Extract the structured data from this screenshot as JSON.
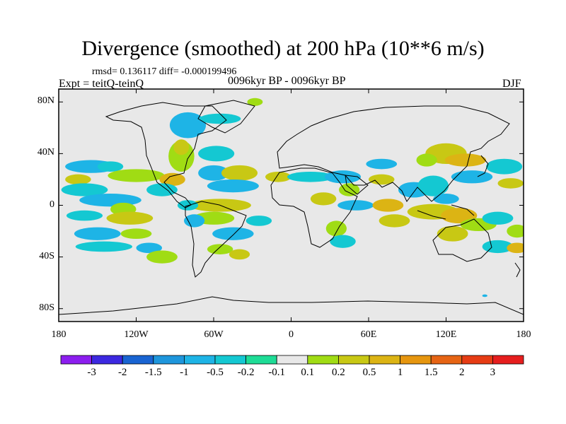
{
  "title": "Divergence (smoothed) at 200 hPa (10**6 m/s)",
  "stats": "rmsd= 0.136117 diff= -0.000199496",
  "experiment": "Expt = teitQ-teinQ",
  "period": "0096kyr BP - 0096kyr BP",
  "season": "DJF",
  "axes": {
    "y_labels": [
      {
        "label": "80N",
        "lat": 80
      },
      {
        "label": "40N",
        "lat": 40
      },
      {
        "label": "0",
        "lat": 0
      },
      {
        "label": "40S",
        "lat": -40
      },
      {
        "label": "80S",
        "lat": -80
      }
    ],
    "x_labels": [
      {
        "label": "180",
        "lon": -180
      },
      {
        "label": "120W",
        "lon": -120
      },
      {
        "label": "60W",
        "lon": -60
      },
      {
        "label": "0",
        "lon": 0
      },
      {
        "label": "60E",
        "lon": 60
      },
      {
        "label": "120E",
        "lon": 120
      },
      {
        "label": "180",
        "lon": 180
      }
    ],
    "lat_range": [
      -90,
      90
    ],
    "lon_range": [
      -180,
      180
    ]
  },
  "colorbar": {
    "colors": [
      "#8c1eef",
      "#3c28e0",
      "#1964d2",
      "#1e96dc",
      "#1eb4e6",
      "#14c8d2",
      "#1edc96",
      "#e8e8e8",
      "#a0dc14",
      "#c8c814",
      "#dcb414",
      "#e6960f",
      "#e66414",
      "#e63c14",
      "#e61e1e"
    ],
    "labels": [
      "-3",
      "-2",
      "-1.5",
      "-1",
      "-0.5",
      "-0.2",
      "-0.1",
      "0.1",
      "0.2",
      "0.5",
      "1",
      "1.5",
      "2",
      "3"
    ]
  },
  "field_blobs": [
    {
      "lon": -155,
      "lat": 30,
      "rx": 20,
      "ry": 5,
      "color": "#1eb4e6"
    },
    {
      "lon": -140,
      "lat": 30,
      "rx": 10,
      "ry": 4,
      "color": "#14c8d2"
    },
    {
      "lon": -120,
      "lat": 23,
      "rx": 22,
      "ry": 5,
      "color": "#a0dc14"
    },
    {
      "lon": -165,
      "lat": 20,
      "rx": 10,
      "ry": 4,
      "color": "#c8c814"
    },
    {
      "lon": -160,
      "lat": 12,
      "rx": 18,
      "ry": 5,
      "color": "#14c8d2"
    },
    {
      "lon": -140,
      "lat": 4,
      "rx": 24,
      "ry": 5,
      "color": "#1eb4e6"
    },
    {
      "lon": -130,
      "lat": -3,
      "rx": 10,
      "ry": 5,
      "color": "#a0dc14"
    },
    {
      "lon": -125,
      "lat": -10,
      "rx": 18,
      "ry": 5,
      "color": "#c8c814"
    },
    {
      "lon": -160,
      "lat": -8,
      "rx": 14,
      "ry": 4,
      "color": "#14c8d2"
    },
    {
      "lon": -150,
      "lat": -22,
      "rx": 18,
      "ry": 5,
      "color": "#1eb4e6"
    },
    {
      "lon": -120,
      "lat": -22,
      "rx": 12,
      "ry": 4,
      "color": "#a0dc14"
    },
    {
      "lon": -145,
      "lat": -32,
      "rx": 22,
      "ry": 4,
      "color": "#14c8d2"
    },
    {
      "lon": -110,
      "lat": -33,
      "rx": 10,
      "ry": 4,
      "color": "#1eb4e6"
    },
    {
      "lon": -100,
      "lat": -40,
      "rx": 12,
      "ry": 5,
      "color": "#a0dc14"
    },
    {
      "lon": -80,
      "lat": 62,
      "rx": 14,
      "ry": 10,
      "color": "#1eb4e6"
    },
    {
      "lon": -85,
      "lat": 38,
      "rx": 10,
      "ry": 12,
      "color": "#a0dc14"
    },
    {
      "lon": -85,
      "lat": 45,
      "rx": 6,
      "ry": 6,
      "color": "#c8c814"
    },
    {
      "lon": -92,
      "lat": 20,
      "rx": 10,
      "ry": 5,
      "color": "#dcb414"
    },
    {
      "lon": -100,
      "lat": 12,
      "rx": 12,
      "ry": 5,
      "color": "#14c8d2"
    },
    {
      "lon": -60,
      "lat": 25,
      "rx": 12,
      "ry": 6,
      "color": "#1eb4e6"
    },
    {
      "lon": -58,
      "lat": 40,
      "rx": 14,
      "ry": 6,
      "color": "#14c8d2"
    },
    {
      "lon": -40,
      "lat": 25,
      "rx": 14,
      "ry": 6,
      "color": "#c8c814"
    },
    {
      "lon": -45,
      "lat": 15,
      "rx": 20,
      "ry": 5,
      "color": "#1eb4e6"
    },
    {
      "lon": -55,
      "lat": 0,
      "rx": 24,
      "ry": 5,
      "color": "#c8c814"
    },
    {
      "lon": -60,
      "lat": -10,
      "rx": 16,
      "ry": 5,
      "color": "#a0dc14"
    },
    {
      "lon": -80,
      "lat": 0,
      "rx": 8,
      "ry": 4,
      "color": "#14c8d2"
    },
    {
      "lon": -75,
      "lat": -12,
      "rx": 8,
      "ry": 5,
      "color": "#1eb4e6"
    },
    {
      "lon": -45,
      "lat": -22,
      "rx": 16,
      "ry": 5,
      "color": "#1eb4e6"
    },
    {
      "lon": -55,
      "lat": -34,
      "rx": 10,
      "ry": 4,
      "color": "#a0dc14"
    },
    {
      "lon": -40,
      "lat": -38,
      "rx": 8,
      "ry": 4,
      "color": "#c8c814"
    },
    {
      "lon": -25,
      "lat": -12,
      "rx": 10,
      "ry": 4,
      "color": "#14c8d2"
    },
    {
      "lon": -28,
      "lat": 80,
      "rx": 6,
      "ry": 3,
      "color": "#a0dc14"
    },
    {
      "lon": -55,
      "lat": 67,
      "rx": 16,
      "ry": 4,
      "color": "#14c8d2"
    },
    {
      "lon": -10,
      "lat": 22,
      "rx": 10,
      "ry": 4,
      "color": "#c8c814"
    },
    {
      "lon": 15,
      "lat": 22,
      "rx": 18,
      "ry": 4,
      "color": "#14c8d2"
    },
    {
      "lon": 40,
      "lat": 22,
      "rx": 14,
      "ry": 5,
      "color": "#1eb4e6"
    },
    {
      "lon": 45,
      "lat": 12,
      "rx": 8,
      "ry": 5,
      "color": "#a0dc14"
    },
    {
      "lon": 25,
      "lat": 5,
      "rx": 10,
      "ry": 5,
      "color": "#c8c814"
    },
    {
      "lon": 35,
      "lat": -18,
      "rx": 8,
      "ry": 6,
      "color": "#a0dc14"
    },
    {
      "lon": 50,
      "lat": 0,
      "rx": 14,
      "ry": 4,
      "color": "#1eb4e6"
    },
    {
      "lon": 40,
      "lat": -28,
      "rx": 10,
      "ry": 5,
      "color": "#14c8d2"
    },
    {
      "lon": 70,
      "lat": 32,
      "rx": 12,
      "ry": 4,
      "color": "#1eb4e6"
    },
    {
      "lon": 70,
      "lat": 20,
      "rx": 10,
      "ry": 4,
      "color": "#c8c814"
    },
    {
      "lon": 75,
      "lat": 0,
      "rx": 12,
      "ry": 5,
      "color": "#dcb414"
    },
    {
      "lon": 80,
      "lat": -12,
      "rx": 12,
      "ry": 5,
      "color": "#c8c814"
    },
    {
      "lon": 95,
      "lat": 12,
      "rx": 12,
      "ry": 6,
      "color": "#1eb4e6"
    },
    {
      "lon": 110,
      "lat": 15,
      "rx": 12,
      "ry": 8,
      "color": "#14c8d2"
    },
    {
      "lon": 120,
      "lat": 40,
      "rx": 16,
      "ry": 8,
      "color": "#c8c814"
    },
    {
      "lon": 135,
      "lat": 35,
      "rx": 16,
      "ry": 5,
      "color": "#dcb414"
    },
    {
      "lon": 105,
      "lat": 35,
      "rx": 8,
      "ry": 5,
      "color": "#a0dc14"
    },
    {
      "lon": 140,
      "lat": 22,
      "rx": 16,
      "ry": 5,
      "color": "#1eb4e6"
    },
    {
      "lon": 165,
      "lat": 30,
      "rx": 14,
      "ry": 6,
      "color": "#14c8d2"
    },
    {
      "lon": 170,
      "lat": 17,
      "rx": 10,
      "ry": 4,
      "color": "#c8c814"
    },
    {
      "lon": 110,
      "lat": -5,
      "rx": 20,
      "ry": 6,
      "color": "#c8c814"
    },
    {
      "lon": 130,
      "lat": -8,
      "rx": 14,
      "ry": 6,
      "color": "#dcb414"
    },
    {
      "lon": 120,
      "lat": 5,
      "rx": 10,
      "ry": 4,
      "color": "#1eb4e6"
    },
    {
      "lon": 145,
      "lat": -15,
      "rx": 14,
      "ry": 5,
      "color": "#a0dc14"
    },
    {
      "lon": 160,
      "lat": -10,
      "rx": 12,
      "ry": 5,
      "color": "#14c8d2"
    },
    {
      "lon": 125,
      "lat": -22,
      "rx": 12,
      "ry": 6,
      "color": "#c8c814"
    },
    {
      "lon": 175,
      "lat": -20,
      "rx": 8,
      "ry": 5,
      "color": "#a0dc14"
    },
    {
      "lon": 160,
      "lat": -32,
      "rx": 12,
      "ry": 5,
      "color": "#14c8d2"
    },
    {
      "lon": 175,
      "lat": -33,
      "rx": 8,
      "ry": 4,
      "color": "#dcb414"
    },
    {
      "lon": 150,
      "lat": -70,
      "rx": 2,
      "ry": 1,
      "color": "#1eb4e6"
    }
  ]
}
